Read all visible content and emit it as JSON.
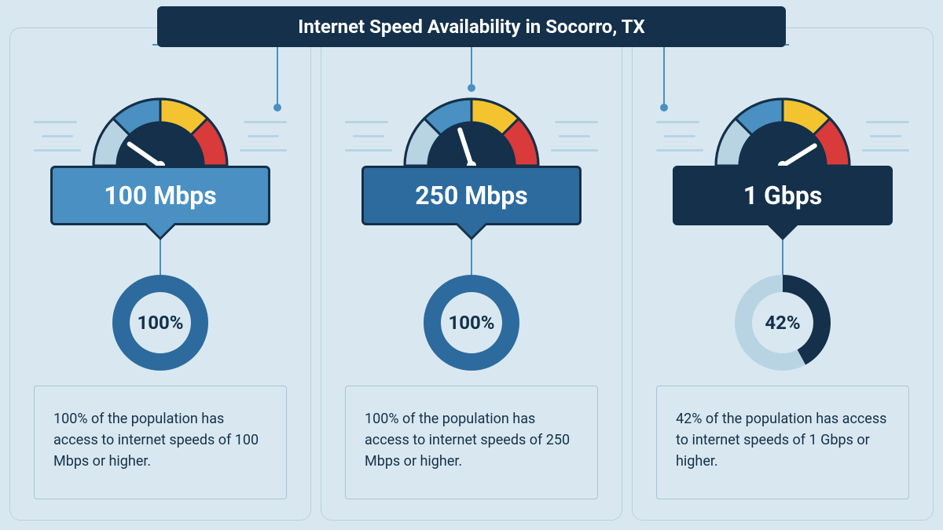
{
  "title": "Internet Speed Availability in Socorro, TX",
  "background_color": "#d9e8f0",
  "title_bg": "#14304a",
  "title_color": "#ffffff",
  "connector_color": "#4a90c2",
  "gauge": {
    "arc_colors": [
      "#b8d4e3",
      "#4a90c2",
      "#f4c430",
      "#d93a3a"
    ],
    "center_color": "#14304a",
    "outline": "#14304a",
    "needle_color": "#ffffff"
  },
  "panels": [
    {
      "pos": "left",
      "speed_label": "100 Mbps",
      "box_bg": "#4a90c2",
      "box_outline": "#14304a",
      "needle_angle": -55,
      "percent": 100,
      "percent_label": "100%",
      "donut_fg": "#2d6a9e",
      "donut_bg": "#b8d4e3",
      "description": "100% of the population has access to internet speeds of 100 Mbps or higher."
    },
    {
      "pos": "center",
      "speed_label": "250 Mbps",
      "box_bg": "#2d6a9e",
      "box_outline": "#14304a",
      "needle_angle": -18,
      "percent": 100,
      "percent_label": "100%",
      "donut_fg": "#2d6a9e",
      "donut_bg": "#b8d4e3",
      "description": "100% of the population has access to internet speeds of 250 Mbps or higher."
    },
    {
      "pos": "right",
      "speed_label": "1 Gbps",
      "box_bg": "#14304a",
      "box_outline": "#14304a",
      "needle_angle": 58,
      "percent": 42,
      "percent_label": "42%",
      "donut_fg": "#14304a",
      "donut_bg": "#b8d4e3",
      "description": "42% of the population has access to internet speeds of 1 Gbps or higher."
    }
  ]
}
